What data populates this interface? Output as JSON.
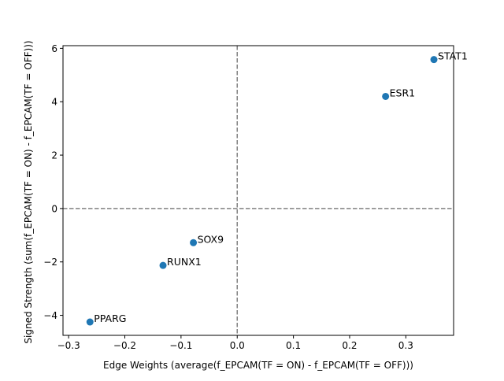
{
  "chart_data": {
    "type": "scatter",
    "title": "",
    "xlabel": "Edge Weights (average(f_EPCAM(TF = ON) - f_EPCAM(TF = OFF)))",
    "ylabel": "Signed Strength (sum(f_EPCAM(TF = ON) - f_EPCAM(TF = OFF)))",
    "xlim": [
      -0.31,
      0.385
    ],
    "ylim": [
      -4.75,
      6.1
    ],
    "xticks": [
      -0.3,
      -0.2,
      -0.1,
      0.0,
      0.1,
      0.2,
      0.3
    ],
    "xtick_labels": [
      "−0.3",
      "−0.2",
      "−0.1",
      "0.0",
      "0.1",
      "0.2",
      "0.3"
    ],
    "yticks": [
      -4,
      -2,
      0,
      2,
      4,
      6
    ],
    "ytick_labels": [
      "−4",
      "−2",
      "0",
      "2",
      "4",
      "6"
    ],
    "grid": false,
    "reference_lines": {
      "x": 0,
      "y": 0,
      "style": "dashed",
      "color": "#808080"
    },
    "marker_color": "#1f77b4",
    "points": [
      {
        "label": "STAT1",
        "x": 0.35,
        "y": 5.58
      },
      {
        "label": "ESR1",
        "x": 0.264,
        "y": 4.2
      },
      {
        "label": "SOX9",
        "x": -0.078,
        "y": -1.28
      },
      {
        "label": "RUNX1",
        "x": -0.132,
        "y": -2.13
      },
      {
        "label": "PPARG",
        "x": -0.262,
        "y": -4.25
      }
    ]
  }
}
